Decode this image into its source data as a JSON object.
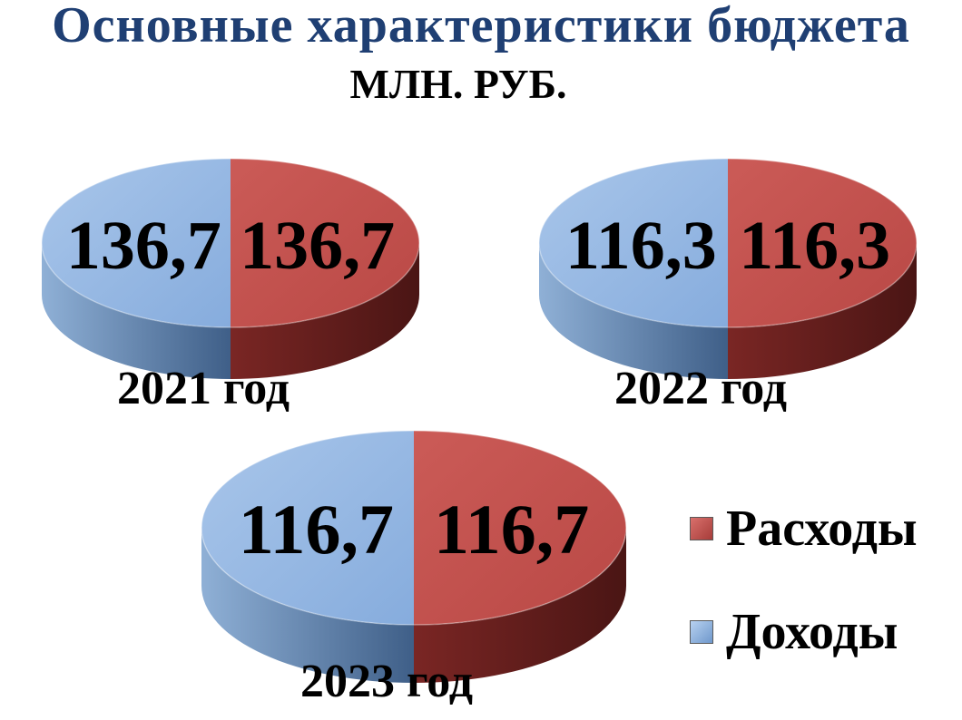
{
  "header": {
    "title": "Основные характеристики бюджета",
    "subtitle": "МЛН. РУБ."
  },
  "colors": {
    "expenses": "#c0504d",
    "income": "#8eb4e3",
    "title": "#1f3f73"
  },
  "legend": [
    {
      "label": "Расходы",
      "color": "#c0504d"
    },
    {
      "label": "Доходы",
      "color": "#8eb4e3"
    }
  ],
  "chart_data": [
    {
      "type": "pie",
      "title": "2021 год",
      "slices": [
        {
          "name": "Доходы",
          "value": 136.7,
          "label": "136,7",
          "color": "#8eb4e3"
        },
        {
          "name": "Расходы",
          "value": 136.7,
          "label": "136,7",
          "color": "#c0504d"
        }
      ]
    },
    {
      "type": "pie",
      "title": "2022 год",
      "slices": [
        {
          "name": "Доходы",
          "value": 116.3,
          "label": "116,3",
          "color": "#8eb4e3"
        },
        {
          "name": "Расходы",
          "value": 116.3,
          "label": "116,3",
          "color": "#c0504d"
        }
      ]
    },
    {
      "type": "pie",
      "title": "2023 год",
      "slices": [
        {
          "name": "Доходы",
          "value": 116.7,
          "label": "116,7",
          "color": "#8eb4e3"
        },
        {
          "name": "Расходы",
          "value": 116.7,
          "label": "116,7",
          "color": "#c0504d"
        }
      ]
    }
  ]
}
